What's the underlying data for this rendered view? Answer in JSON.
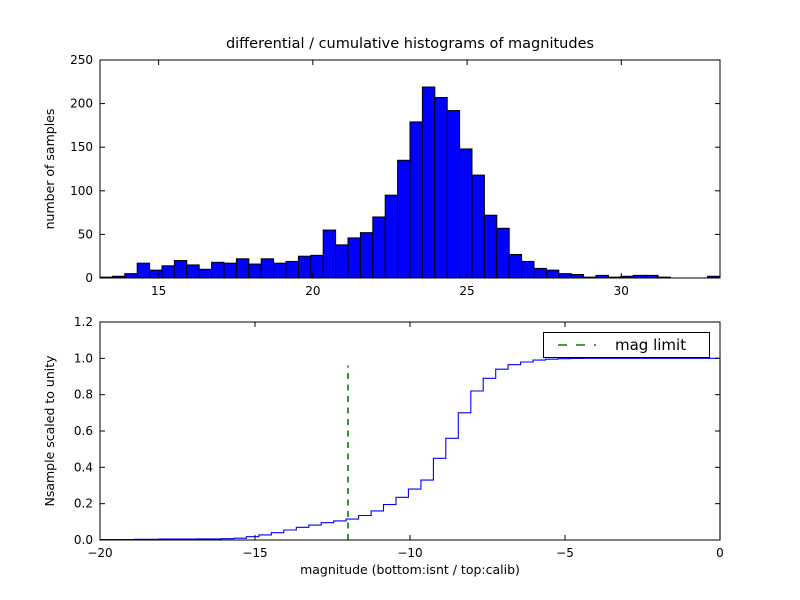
{
  "figure": {
    "title": "differential / cumulative histograms of magnitudes",
    "background": "#ffffff",
    "colors": {
      "bar_fill": "#0000ff",
      "bar_edge": "#000000",
      "cumulative_line": "#0000ff",
      "mag_limit_line": "#008000",
      "axis": "#000000"
    }
  },
  "chart_data": [
    {
      "type": "bar",
      "title": "differential / cumulative histograms of magnitudes",
      "xlabel": "",
      "ylabel": "number of samples",
      "xlim": [
        13.1,
        33.2
      ],
      "ylim": [
        0,
        250
      ],
      "xticks": [
        15,
        20,
        25,
        30
      ],
      "xtick_labels": [
        "15",
        "20",
        "25",
        "30"
      ],
      "yticks": [
        0,
        50,
        100,
        150,
        200,
        250
      ],
      "ytick_labels": [
        "0",
        "50",
        "100",
        "150",
        "200",
        "250"
      ],
      "grid": false,
      "bar_fill": "#0000ff",
      "bar_edge": "#000000",
      "bin_start": 13.1,
      "bin_width": 0.402,
      "counts": [
        1,
        2,
        5,
        17,
        9,
        14,
        20,
        15,
        10,
        18,
        17,
        22,
        16,
        22,
        17,
        19,
        25,
        26,
        55,
        38,
        46,
        52,
        70,
        95,
        135,
        179,
        219,
        207,
        192,
        148,
        118,
        72,
        57,
        27,
        19,
        11,
        9,
        5,
        4,
        1,
        3,
        1,
        2,
        3,
        3,
        1,
        0,
        0,
        0,
        2
      ]
    },
    {
      "type": "line",
      "title": "",
      "xlabel": "magnitude (bottom:isnt / top:calib)",
      "ylabel": "Nsample scaled to unity",
      "xlim": [
        -20,
        0
      ],
      "ylim": [
        0,
        1.2
      ],
      "xticks": [
        -20,
        -15,
        -10,
        -5,
        0
      ],
      "xtick_labels": [
        "−20",
        "−15",
        "−10",
        "−5",
        "0"
      ],
      "yticks": [
        0.0,
        0.2,
        0.4,
        0.6,
        0.8,
        1.0,
        1.2
      ],
      "ytick_labels": [
        "0.0",
        "0.2",
        "0.4",
        "0.6",
        "0.8",
        "1.0",
        "1.2"
      ],
      "grid": false,
      "line_color": "#0000ff",
      "step_x_start": -20.1,
      "step_width": 0.402,
      "cumulative": [
        0.002,
        0.003,
        0.003,
        0.004,
        0.004,
        0.005,
        0.005,
        0.005,
        0.006,
        0.006,
        0.007,
        0.01,
        0.018,
        0.028,
        0.04,
        0.055,
        0.07,
        0.082,
        0.095,
        0.105,
        0.115,
        0.135,
        0.16,
        0.195,
        0.235,
        0.28,
        0.33,
        0.45,
        0.56,
        0.7,
        0.82,
        0.89,
        0.94,
        0.965,
        0.98,
        0.99,
        0.995,
        0.998,
        0.999,
        1.0,
        1.0,
        1.0,
        1.0,
        1.0,
        1.0,
        1.0,
        1.0,
        1.0,
        1.0,
        1.0
      ],
      "closes_to_zero_at_xmax": true,
      "mag_limit": {
        "x": -12,
        "y0": 0.0,
        "y1": 0.96,
        "color": "#008000",
        "style": "dashed"
      },
      "legend": {
        "position": "upper right",
        "items": [
          {
            "label": "mag limit",
            "color": "#008000",
            "dash": true
          }
        ]
      }
    }
  ]
}
